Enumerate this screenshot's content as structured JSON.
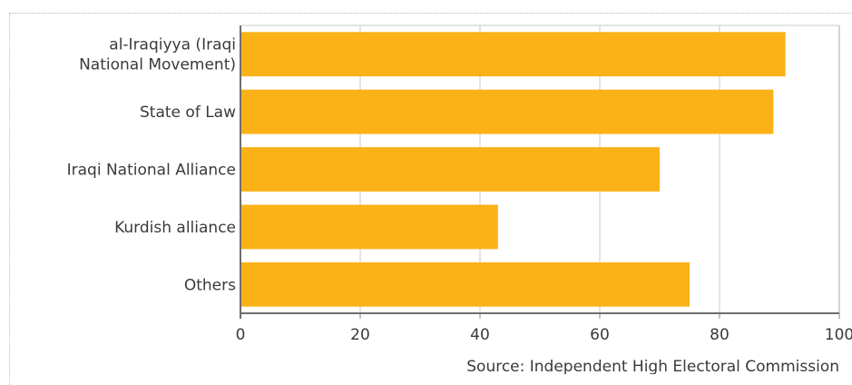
{
  "chart_data": {
    "type": "bar",
    "orientation": "horizontal",
    "categories": [
      [
        "al-Iraqiyya (Iraqi",
        "National Movement)"
      ],
      [
        "State of Law"
      ],
      [
        "Iraqi National Alliance"
      ],
      [
        "Kurdish alliance"
      ],
      [
        "Others"
      ]
    ],
    "values": [
      91,
      89,
      70,
      43,
      75
    ],
    "xlim": [
      0,
      100
    ],
    "xticks": [
      0,
      20,
      40,
      60,
      80,
      100
    ],
    "grid": true,
    "bar_color": "#FBB217",
    "source": "Source: Independent High Electoral Commission"
  }
}
